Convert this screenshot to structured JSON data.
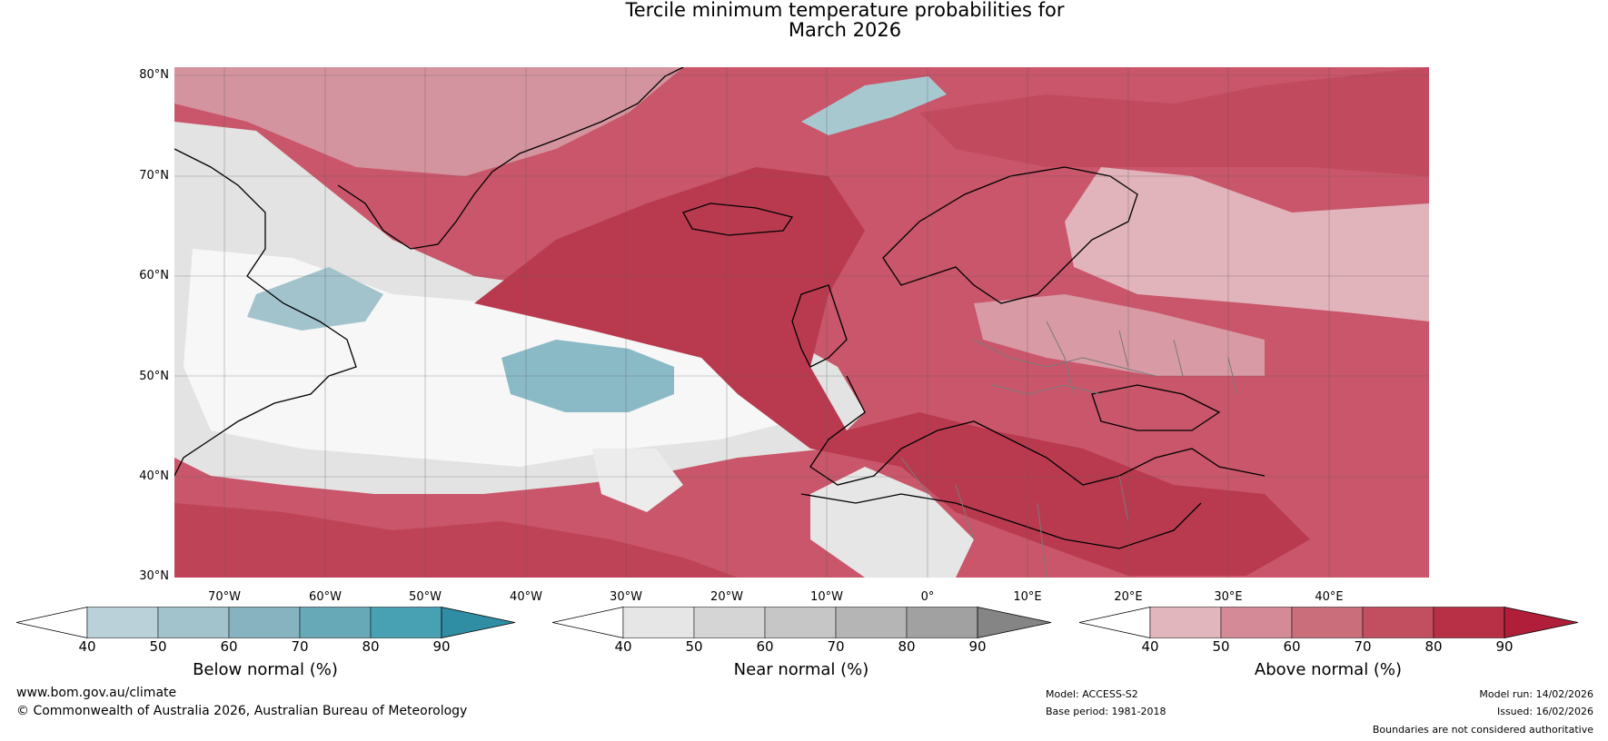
{
  "title": {
    "line1": "Tercile minimum temperature probabilities for",
    "line2": "March 2026"
  },
  "axes": {
    "lat_labels": [
      "80°N",
      "70°N",
      "60°N",
      "50°N",
      "40°N",
      "30°N"
    ],
    "lon_labels": [
      "70°W",
      "60°W",
      "50°W",
      "40°W",
      "30°W",
      "20°W",
      "10°W",
      "0°",
      "10°E",
      "20°E",
      "30°E",
      "40°E"
    ]
  },
  "colorbars": [
    {
      "name": "below",
      "label": "Below normal (%)",
      "ticks": [
        "40",
        "50",
        "60",
        "70",
        "80",
        "90"
      ],
      "under_color": "#ffffff",
      "colors": [
        "#bbd1da",
        "#a2c3cc",
        "#86b3bf",
        "#68a9b8",
        "#47a1b3"
      ],
      "over_color": "#2f8ea3"
    },
    {
      "name": "near",
      "label": "Near normal (%)",
      "ticks": [
        "40",
        "50",
        "60",
        "70",
        "80",
        "90"
      ],
      "under_color": "#ffffff",
      "colors": [
        "#e6e6e6",
        "#d5d5d5",
        "#c6c6c6",
        "#b4b5b4",
        "#a1a1a1"
      ],
      "over_color": "#858585"
    },
    {
      "name": "above",
      "label": "Above normal (%)",
      "ticks": [
        "40",
        "50",
        "60",
        "70",
        "80",
        "90"
      ],
      "under_color": "#ffffff",
      "colors": [
        "#e2b6bd",
        "#d58a97",
        "#cb6e7c",
        "#c24f60",
        "#b73046"
      ],
      "over_color": "#b01e3a"
    }
  ],
  "footer": {
    "website": "www.bom.gov.au/climate",
    "copyright": "© Commonwealth of Australia 2026, Australian Bureau of Meteorology",
    "model": "Model: ACCESS-S2",
    "base_period": "Base period: 1981-2018",
    "model_run": "Model run: 14/02/2026",
    "issued": "Issued: 16/02/2026",
    "disclaimer": "Boundaries are not considered authoritative"
  }
}
